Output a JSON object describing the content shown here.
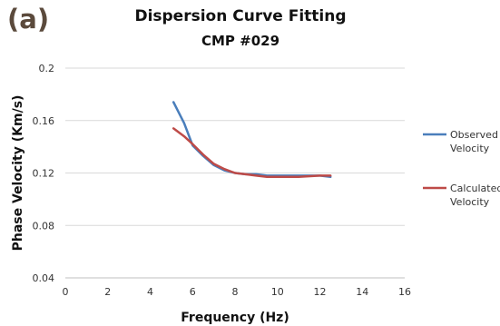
{
  "panel_label": "(a)",
  "chart_data": {
    "type": "line",
    "title": "Dispersion Curve Fitting",
    "subtitle": "CMP #029",
    "xlabel": "Frequency (Hz)",
    "ylabel": "Phase Velocity (Km/s)",
    "xlim": [
      0,
      16
    ],
    "ylim": [
      0.04,
      0.2
    ],
    "xticks": [
      0,
      2,
      4,
      6,
      8,
      10,
      12,
      14,
      16
    ],
    "yticks": [
      0.04,
      0.08,
      0.12,
      0.16,
      0.2
    ],
    "ytick_labels": [
      "0.04",
      "0.08",
      "0.12",
      "0.16",
      "0.2"
    ],
    "grid": {
      "horizontal": true,
      "vertical": false
    },
    "legend_position": "right",
    "series": [
      {
        "name": "Observed Velocity",
        "legend_lines": [
          "Observed",
          "Velocity"
        ],
        "color": "#4a7ebb",
        "x": [
          5.1,
          5.6,
          6.0,
          6.5,
          7.0,
          7.5,
          8.0,
          8.5,
          9.0,
          9.5,
          10.0,
          11.0,
          12.0,
          12.5
        ],
        "y": [
          0.174,
          0.158,
          0.141,
          0.133,
          0.126,
          0.122,
          0.12,
          0.119,
          0.119,
          0.118,
          0.118,
          0.118,
          0.118,
          0.117
        ]
      },
      {
        "name": "Calculated Velocity",
        "legend_lines": [
          "Calculated",
          "Velocity"
        ],
        "color": "#be4b48",
        "x": [
          5.1,
          5.6,
          6.0,
          6.5,
          7.0,
          7.5,
          8.0,
          8.5,
          9.0,
          9.5,
          10.0,
          11.0,
          12.0,
          12.5
        ],
        "y": [
          0.154,
          0.148,
          0.142,
          0.134,
          0.127,
          0.123,
          0.12,
          0.119,
          0.118,
          0.117,
          0.117,
          0.117,
          0.118,
          0.118
        ]
      }
    ]
  }
}
